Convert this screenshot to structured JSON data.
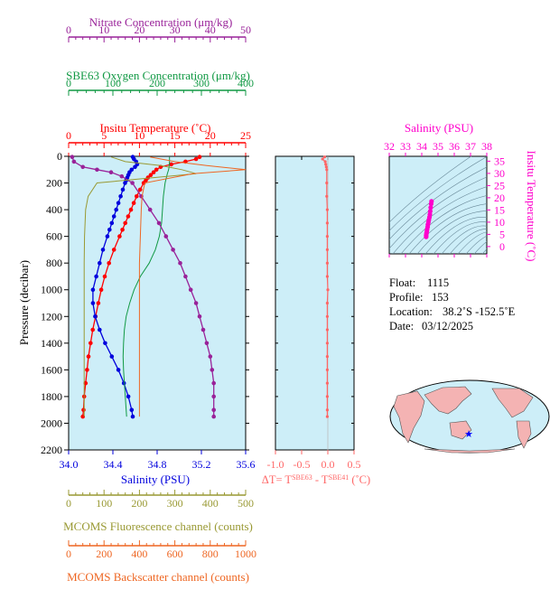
{
  "colors": {
    "temperature": "#ff0000",
    "salinity": "#0000dd",
    "oxygen": "#119944",
    "nitrate": "#992299",
    "fluorescence": "#999933",
    "backscatter": "#ee6622",
    "delta_t": "#ff6666",
    "ts_profile": "#ff00cc",
    "panel_bg": "#cdeef8"
  },
  "chart_data": [
    {
      "type": "line",
      "axes": {
        "pressure": {
          "label": "Pressure (decibar)",
          "range": [
            0,
            2200
          ],
          "ticks": [
            "0",
            "200",
            "400",
            "600",
            "800",
            "1000",
            "1200",
            "1400",
            "1600",
            "1800",
            "2000",
            "2200"
          ],
          "inverted": true
        },
        "salinity": {
          "label": "Salinity (PSU)",
          "range": [
            34.0,
            35.6
          ],
          "ticks": [
            "34.0",
            "34.4",
            "34.8",
            "35.2",
            "35.6"
          ],
          "position": "bottom"
        },
        "temperature": {
          "label": "Insitu Temperature (˚C)",
          "range": [
            0,
            25
          ],
          "ticks": [
            "0",
            "5",
            "10",
            "15",
            "20",
            "25"
          ],
          "position": "top"
        },
        "oxygen": {
          "label": "SBE63 Oxygen Concentration (μm/kg)",
          "range": [
            0,
            400
          ],
          "ticks": [
            "0",
            "100",
            "200",
            "300",
            "400"
          ],
          "position": "top"
        },
        "nitrate": {
          "label": "Nitrate Concentration (μm/kg)",
          "range": [
            0,
            50
          ],
          "ticks": [
            "0",
            "10",
            "20",
            "30",
            "40",
            "50"
          ],
          "position": "top"
        },
        "fluorescence": {
          "label": "MCOMS Fluorescence channel (counts)",
          "range": [
            0,
            500
          ],
          "ticks": [
            "0",
            "100",
            "200",
            "300",
            "400",
            "500"
          ],
          "position": "bottom"
        },
        "backscatter": {
          "label": "MCOMS Backscatter channel (counts)",
          "range": [
            0,
            1000
          ],
          "ticks": [
            "0",
            "200",
            "400",
            "600",
            "800",
            "1000"
          ],
          "position": "bottom"
        }
      },
      "series": [
        {
          "name": "Insitu Temperature",
          "axis": "temperature",
          "color_key": "temperature",
          "markers": true,
          "pressure": [
            5,
            20,
            40,
            60,
            80,
            100,
            120,
            140,
            160,
            180,
            200,
            250,
            300,
            350,
            400,
            450,
            500,
            550,
            600,
            700,
            800,
            900,
            1000,
            1100,
            1200,
            1300,
            1400,
            1500,
            1600,
            1700,
            1800,
            1900,
            1950
          ],
          "values": [
            18.5,
            18.0,
            16.5,
            14.5,
            13.0,
            12.4,
            12.0,
            11.6,
            11.2,
            10.9,
            10.6,
            10.1,
            9.6,
            9.2,
            8.8,
            8.4,
            8.0,
            7.6,
            7.2,
            6.4,
            5.7,
            5.1,
            4.6,
            4.2,
            3.8,
            3.4,
            3.1,
            2.8,
            2.6,
            2.4,
            2.2,
            2.1,
            2.0
          ]
        },
        {
          "name": "Salinity",
          "axis": "salinity",
          "color_key": "salinity",
          "markers": true,
          "pressure": [
            5,
            20,
            40,
            60,
            80,
            100,
            120,
            140,
            160,
            180,
            200,
            250,
            300,
            350,
            400,
            450,
            500,
            550,
            600,
            700,
            800,
            900,
            1000,
            1100,
            1200,
            1300,
            1400,
            1500,
            1600,
            1700,
            1800,
            1900,
            1950
          ],
          "values": [
            34.58,
            34.59,
            34.61,
            34.62,
            34.6,
            34.57,
            34.55,
            34.54,
            34.53,
            34.52,
            34.51,
            34.49,
            34.47,
            34.45,
            34.43,
            34.41,
            34.39,
            34.37,
            34.35,
            34.31,
            34.28,
            34.25,
            34.22,
            34.22,
            34.24,
            34.28,
            34.33,
            34.39,
            34.45,
            34.5,
            34.54,
            34.57,
            34.58
          ]
        },
        {
          "name": "SBE63 Oxygen Concentration",
          "axis": "oxygen",
          "color_key": "oxygen",
          "markers": false,
          "pressure": [
            5,
            40,
            80,
            100,
            130,
            200,
            300,
            400,
            500,
            600,
            700,
            800,
            900,
            1000,
            1100,
            1200,
            1300,
            1400,
            1500,
            1600,
            1700,
            1800,
            1900,
            1950
          ],
          "values": [
            228,
            228,
            227,
            226,
            223,
            218,
            214,
            212,
            210,
            205,
            196,
            182,
            162,
            148,
            138,
            130,
            126,
            124,
            123,
            124,
            126,
            128,
            130,
            131
          ]
        },
        {
          "name": "Nitrate Concentration",
          "axis": "nitrate",
          "color_key": "nitrate",
          "markers": true,
          "pressure": [
            5,
            40,
            80,
            100,
            120,
            150,
            200,
            300,
            400,
            500,
            600,
            700,
            800,
            900,
            1000,
            1100,
            1200,
            1300,
            1400,
            1500,
            1600,
            1700,
            1800,
            1900,
            1950
          ],
          "values": [
            1.0,
            1.5,
            4.0,
            8.0,
            12.0,
            15.0,
            18.0,
            20.5,
            23.0,
            25.5,
            27.5,
            29.5,
            31.5,
            33.0,
            34.5,
            36.0,
            37.0,
            38.0,
            39.0,
            40.0,
            40.5,
            41.0,
            41.0,
            41.0,
            41.0
          ]
        },
        {
          "name": "MCOMS Fluorescence channel",
          "axis": "fluorescence",
          "color_key": "fluorescence",
          "markers": false,
          "pressure": [
            5,
            40,
            70,
            100,
            130,
            200,
            300,
            400,
            600,
            800,
            1000,
            1200,
            1400,
            1600,
            1800,
            1950
          ],
          "values": [
            120,
            160,
            260,
            320,
            360,
            80,
            55,
            48,
            45,
            44,
            44,
            44,
            44,
            44,
            44,
            44
          ]
        },
        {
          "name": "MCOMS Backscatter channel",
          "axis": "backscatter",
          "color_key": "backscatter",
          "markers": false,
          "pressure": [
            5,
            40,
            70,
            100,
            130,
            200,
            300,
            400,
            600,
            800,
            1000,
            1200,
            1400,
            1600,
            1800,
            1950
          ],
          "values": [
            460,
            600,
            780,
            1000,
            700,
            430,
            415,
            410,
            405,
            400,
            400,
            400,
            400,
            400,
            400,
            400
          ]
        }
      ]
    },
    {
      "type": "line",
      "x": {
        "label": "ΔT= T",
        "label_sup1": "SBE63",
        "label_mid": " - T",
        "label_sup2": "SBE41",
        "label_end": " (˚C)",
        "range": [
          -1.0,
          0.5
        ],
        "ticks": [
          "-1.0",
          "-0.5",
          "0.0",
          "0.5"
        ]
      },
      "y": {
        "range": [
          0,
          2200
        ],
        "inverted": true
      },
      "series": [
        {
          "name": "ΔT",
          "color_key": "delta_t",
          "pressure": [
            5,
            20,
            40,
            60,
            80,
            100,
            200,
            300,
            400,
            500,
            600,
            700,
            800,
            900,
            1000,
            1100,
            1200,
            1300,
            1400,
            1500,
            1600,
            1700,
            1800,
            1900,
            1950
          ],
          "values": [
            -0.06,
            -0.1,
            -0.05,
            -0.04,
            -0.03,
            -0.02,
            -0.02,
            -0.02,
            -0.01,
            -0.01,
            -0.01,
            -0.01,
            -0.01,
            -0.01,
            0.0,
            -0.01,
            -0.01,
            -0.01,
            -0.01,
            -0.01,
            -0.01,
            -0.01,
            -0.01,
            -0.01,
            -0.01
          ]
        }
      ]
    },
    {
      "type": "scatter",
      "title": "Salinity (PSU)",
      "x": {
        "label": "Salinity (PSU)",
        "range": [
          32,
          38
        ],
        "ticks": [
          "32",
          "33",
          "34",
          "35",
          "36",
          "37",
          "38"
        ]
      },
      "y": {
        "label": "Insitu Temperature (˚C)",
        "range": [
          -3,
          37
        ],
        "ticks": [
          "0",
          "5",
          "10",
          "15",
          "20",
          "25",
          "30",
          "35"
        ]
      },
      "series": [
        {
          "name": "T-S",
          "color_key": "ts_profile",
          "x": [
            34.6,
            34.58,
            34.55,
            34.52,
            34.5,
            34.47,
            34.44,
            34.41,
            34.38,
            34.36,
            34.33,
            34.31,
            34.29,
            34.27,
            34.27
          ],
          "y": [
            18.5,
            17.5,
            16.0,
            14.5,
            13.2,
            12.0,
            11.0,
            10.0,
            9.0,
            8.0,
            7.0,
            6.2,
            5.4,
            4.6,
            4.0
          ]
        }
      ],
      "grid": false
    }
  ],
  "metadata": {
    "float_label": "Float:",
    "float_value": "1115",
    "profile_label": "Profile:",
    "profile_value": "153",
    "location_label": "Location:",
    "location_value": "38.2˚S  -152.5˚E",
    "date_label": "Date:",
    "date_value": "03/12/2025"
  },
  "map": {
    "marker_icon": "star-icon",
    "marker_color": "#0000ff"
  }
}
